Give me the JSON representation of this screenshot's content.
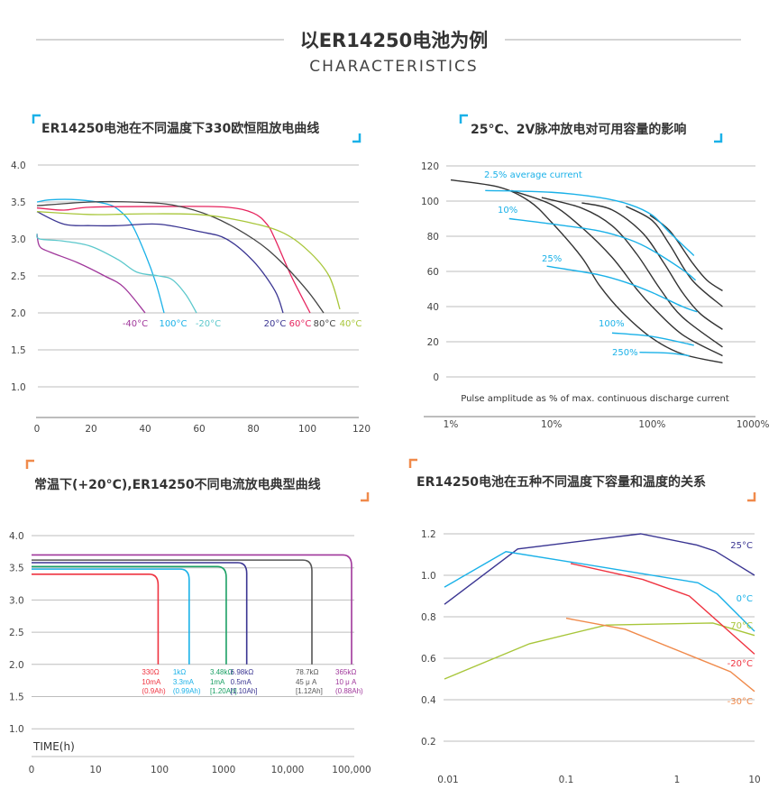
{
  "header": {
    "title": "以ER14250电池为例",
    "subtitle": "CHARACTERISTICS"
  },
  "colors": {
    "bracket_blue": "#1ab1e8",
    "bracket_orange": "#f08a4b",
    "grid": "#bdbdbd"
  },
  "chart_data": [
    {
      "type": "line",
      "title": "ER14250电池在不同温度下330欧恒阻放电曲线",
      "xlim": [
        0,
        120
      ],
      "ylim": [
        0.6,
        4.0
      ],
      "grid": true,
      "xticks": [
        "0",
        "20",
        "40",
        "60",
        "80",
        "100",
        "120"
      ],
      "yticks": [
        "4.0",
        "3.5",
        "3.0",
        "2.5",
        "2.0",
        "1.5",
        "1.0"
      ],
      "series": [
        {
          "name": "-40°C",
          "color": "#a0379b",
          "points": [
            [
              0,
              3.07
            ],
            [
              1,
              2.9
            ],
            [
              5,
              2.82
            ],
            [
              15,
              2.68
            ],
            [
              25,
              2.5
            ],
            [
              32,
              2.35
            ],
            [
              40,
              2.0
            ]
          ]
        },
        {
          "name": "100°C",
          "color": "#1ab1e8",
          "points": [
            [
              0,
              3.5
            ],
            [
              5,
              3.53
            ],
            [
              15,
              3.53
            ],
            [
              25,
              3.48
            ],
            [
              30,
              3.4
            ],
            [
              35,
              3.2
            ],
            [
              40,
              2.8
            ],
            [
              44,
              2.4
            ],
            [
              47,
              2.0
            ]
          ]
        },
        {
          "name": "-20°C",
          "color": "#5cc8cc",
          "points": [
            [
              0,
              3.07
            ],
            [
              1,
              3.0
            ],
            [
              10,
              2.97
            ],
            [
              20,
              2.9
            ],
            [
              30,
              2.72
            ],
            [
              37,
              2.55
            ],
            [
              45,
              2.5
            ],
            [
              50,
              2.45
            ],
            [
              55,
              2.25
            ],
            [
              59,
              2.0
            ]
          ]
        },
        {
          "name": "20°C",
          "color": "#3a3592",
          "points": [
            [
              0,
              3.37
            ],
            [
              10,
              3.2
            ],
            [
              20,
              3.18
            ],
            [
              30,
              3.18
            ],
            [
              45,
              3.2
            ],
            [
              60,
              3.1
            ],
            [
              70,
              3.0
            ],
            [
              80,
              2.7
            ],
            [
              88,
              2.3
            ],
            [
              91,
              2.0
            ]
          ]
        },
        {
          "name": "60°C",
          "color": "#e6245e",
          "points": [
            [
              0,
              3.42
            ],
            [
              10,
              3.39
            ],
            [
              20,
              3.43
            ],
            [
              50,
              3.44
            ],
            [
              70,
              3.43
            ],
            [
              80,
              3.35
            ],
            [
              85,
              3.2
            ],
            [
              88,
              3.0
            ],
            [
              94,
              2.5
            ],
            [
              101,
              2.0
            ]
          ]
        },
        {
          "name": "80°C",
          "color": "#444444",
          "points": [
            [
              0,
              3.45
            ],
            [
              20,
              3.5
            ],
            [
              35,
              3.5
            ],
            [
              50,
              3.46
            ],
            [
              65,
              3.3
            ],
            [
              80,
              3.0
            ],
            [
              90,
              2.7
            ],
            [
              100,
              2.3
            ],
            [
              106,
              2.0
            ]
          ]
        },
        {
          "name": "40°C",
          "color": "#a8c63a",
          "points": [
            [
              0,
              3.37
            ],
            [
              20,
              3.33
            ],
            [
              40,
              3.34
            ],
            [
              60,
              3.33
            ],
            [
              75,
              3.25
            ],
            [
              90,
              3.1
            ],
            [
              100,
              2.85
            ],
            [
              108,
              2.5
            ],
            [
              112,
              2.05
            ]
          ]
        }
      ]
    },
    {
      "type": "line",
      "title": "25°C、2V脉冲放电对可用容量的影响",
      "xlabel": "Pulse amplitude as % of max. continuous discharge current",
      "xscale": "log",
      "xlim": [
        1,
        1000
      ],
      "ylim": [
        0,
        120
      ],
      "grid": true,
      "xticks": [
        "1%",
        "10%",
        "100%",
        "1000%"
      ],
      "yticks": [
        "120",
        "100",
        "80",
        "60",
        "40",
        "20",
        "0"
      ],
      "black_curves": [
        [
          [
            1,
            112
          ],
          [
            3,
            108
          ],
          [
            6,
            100
          ],
          [
            10,
            88
          ],
          [
            20,
            68
          ],
          [
            30,
            52
          ],
          [
            50,
            37
          ],
          [
            100,
            22
          ],
          [
            200,
            13
          ],
          [
            500,
            8
          ]
        ],
        [
          [
            4,
            106
          ],
          [
            10,
            98
          ],
          [
            20,
            85
          ],
          [
            40,
            68
          ],
          [
            70,
            50
          ],
          [
            100,
            40
          ],
          [
            200,
            24
          ],
          [
            500,
            12
          ]
        ],
        [
          [
            8,
            102
          ],
          [
            20,
            96
          ],
          [
            40,
            86
          ],
          [
            70,
            70
          ],
          [
            120,
            50
          ],
          [
            200,
            34
          ],
          [
            500,
            17
          ]
        ],
        [
          [
            20,
            99
          ],
          [
            40,
            95
          ],
          [
            80,
            82
          ],
          [
            130,
            65
          ],
          [
            200,
            48
          ],
          [
            300,
            36
          ],
          [
            500,
            27
          ]
        ],
        [
          [
            55,
            97
          ],
          [
            100,
            89
          ],
          [
            150,
            75
          ],
          [
            250,
            55
          ],
          [
            500,
            40
          ]
        ],
        [
          [
            95,
            92
          ],
          [
            150,
            83
          ],
          [
            250,
            65
          ],
          [
            350,
            55
          ],
          [
            500,
            49
          ]
        ]
      ],
      "series": [
        {
          "name": "2.5% average current",
          "color": "#1ab1e8",
          "points": [
            [
              2.2,
              106
            ],
            [
              10,
              105
            ],
            [
              30,
              102
            ],
            [
              60,
              98
            ],
            [
              100,
              92
            ],
            [
              150,
              82
            ],
            [
              260,
              69
            ]
          ]
        },
        {
          "name": "10%",
          "color": "#1ab1e8",
          "points": [
            [
              3.8,
              90
            ],
            [
              10,
              87
            ],
            [
              30,
              83
            ],
            [
              60,
              78
            ],
            [
              100,
              72
            ],
            [
              200,
              61
            ],
            [
              270,
              55
            ]
          ]
        },
        {
          "name": "25%",
          "color": "#1ab1e8",
          "points": [
            [
              9,
              63
            ],
            [
              30,
              58
            ],
            [
              60,
              53
            ],
            [
              100,
              48
            ],
            [
              200,
              40
            ],
            [
              280,
              37
            ]
          ]
        },
        {
          "name": "100%",
          "color": "#1ab1e8",
          "points": [
            [
              40,
              25
            ],
            [
              100,
              23
            ],
            [
              260,
              18
            ]
          ]
        },
        {
          "name": "250%",
          "color": "#1ab1e8",
          "points": [
            [
              75,
              14
            ],
            [
              150,
              13.5
            ],
            [
              235,
              12
            ]
          ]
        }
      ]
    },
    {
      "type": "line",
      "title": "常温下(+20°C),ER14250不同电流放电典型曲线",
      "xlabel": "TIME(h)",
      "xscale": "log",
      "ylim": [
        0.6,
        4.0
      ],
      "grid": true,
      "xticks": [
        "0",
        "10",
        "100",
        "1000",
        "10,000",
        "100,000"
      ],
      "yticks": [
        "4.0",
        "3.5",
        "3.0",
        "2.5",
        "2.0",
        "1.5",
        "1.0"
      ],
      "series": [
        {
          "name": "330Ω",
          "current": "10mA",
          "capacity": "(0.9Ah)",
          "color": "#ef3340",
          "voltage": 3.4,
          "end_time": 95
        },
        {
          "name": "1kΩ",
          "current": "3.3mA",
          "capacity": "(0.99Ah)",
          "color": "#1ab1e8",
          "voltage": 3.48,
          "end_time": 290
        },
        {
          "name": "3.48kΩ",
          "current": "1mA",
          "capacity": "[1.20Ah]",
          "color": "#1aa064",
          "voltage": 3.52,
          "end_time": 1100
        },
        {
          "name": "6.98kΩ",
          "current": "0.5mA",
          "capacity": "[1.10Ah]",
          "color": "#3a3592",
          "voltage": 3.58,
          "end_time": 2300
        },
        {
          "name": "78.7kΩ",
          "current": "45 μ A",
          "capacity": "[1.12Ah]",
          "color": "#555555",
          "voltage": 3.62,
          "end_time": 24000
        },
        {
          "name": "365kΩ",
          "current": "10 μ A",
          "capacity": "(0.88Ah)",
          "color": "#a0379b",
          "voltage": 3.7,
          "end_time": 100000
        }
      ]
    },
    {
      "type": "line",
      "title": "ER14250电池在五种不同温度下容量和温度的关系",
      "xscale": "log",
      "xlim": [
        0.01,
        10
      ],
      "ylim": [
        0.2,
        1.2
      ],
      "grid": true,
      "xticks": [
        "0.01",
        "0.1",
        "1",
        "10"
      ],
      "yticks": [
        "1.2",
        "1.0",
        "0.8",
        "0.6",
        "0.4",
        "0.2"
      ],
      "series": [
        {
          "name": "25°C",
          "color": "#3a3592",
          "points": [
            [
              0.01,
              0.86
            ],
            [
              0.04,
              1.127
            ],
            [
              0.47,
              1.2
            ],
            [
              1.8,
              1.146
            ],
            [
              3.1,
              1.117
            ],
            [
              10,
              1.0
            ]
          ]
        },
        {
          "name": "0°C",
          "color": "#1ab1e8",
          "points": [
            [
              0.01,
              0.943
            ],
            [
              0.032,
              1.114
            ],
            [
              0.11,
              1.064
            ],
            [
              1.86,
              0.964
            ],
            [
              3.3,
              0.91
            ],
            [
              10,
              0.73
            ]
          ]
        },
        {
          "name": "70°C",
          "color": "#a8c63a",
          "points": [
            [
              0.01,
              0.5
            ],
            [
              0.05,
              0.67
            ],
            [
              0.23,
              0.76
            ],
            [
              2.9,
              0.77
            ],
            [
              10,
              0.71
            ]
          ]
        },
        {
          "name": "-20°C",
          "color": "#ef3340",
          "points": [
            [
              0.11,
              1.057
            ],
            [
              0.49,
              0.98
            ],
            [
              1.44,
              0.9
            ],
            [
              10,
              0.62
            ]
          ]
        },
        {
          "name": "-30°C",
          "color": "#f08a4b",
          "points": [
            [
              0.1,
              0.793
            ],
            [
              0.34,
              0.74
            ],
            [
              1.44,
              0.615
            ],
            [
              4.9,
              0.535
            ],
            [
              10,
              0.44
            ]
          ]
        }
      ]
    }
  ]
}
